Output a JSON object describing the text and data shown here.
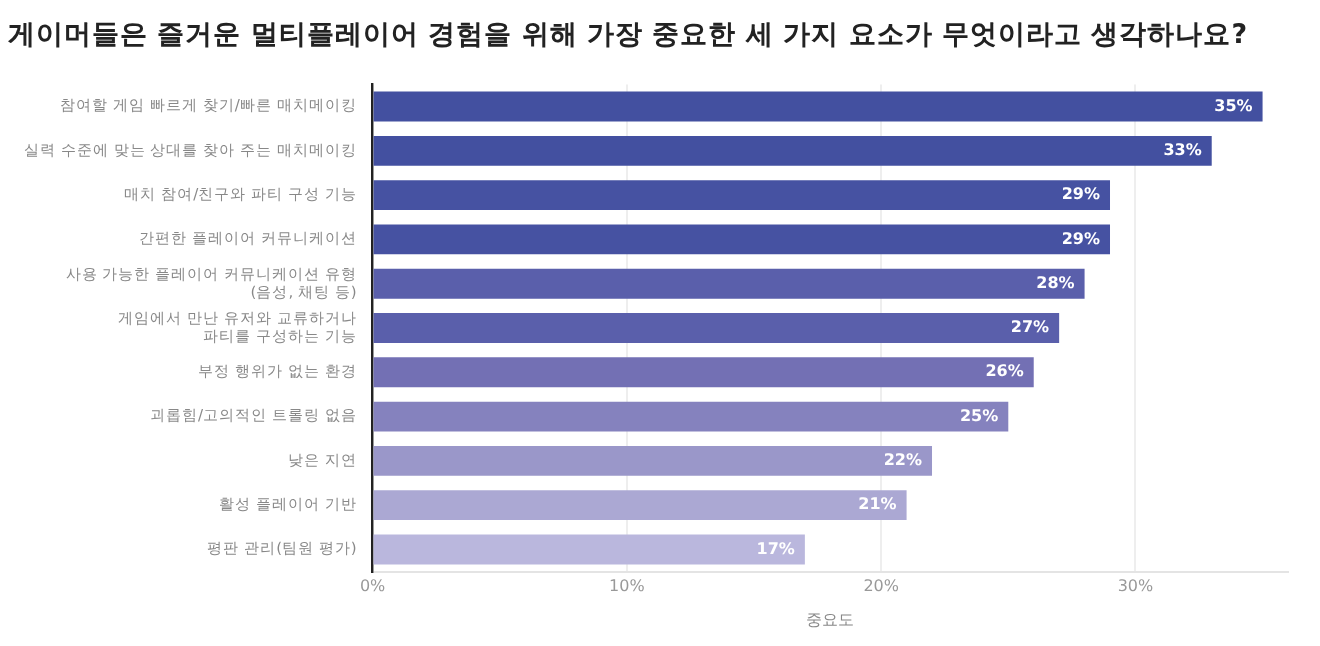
{
  "chart_data": {
    "type": "bar",
    "orientation": "horizontal",
    "title": "게이머들은 즐거운 멀티플레이어 경험을 위해 가장 중요한 세 가지 요소가 무엇이라고 생각하나요?",
    "xlabel": "중요도",
    "categories": [
      "참여할 게임 빠르게 찾기/빠른 매치메이킹",
      "실력 수준에 맞는 상대를 찾아 주는 매치메이킹",
      "매치 참여/친구와 파티 구성 기능",
      "간편한 플레이어 커뮤니케이션",
      "사용 가능한 플레이어 커뮤니케이션 유형\n(음성, 채팅 등)",
      "게임에서 만난 유저와 교류하거나\n파티를 구성하는 기능",
      "부정 행위가 없는 환경",
      "괴롭힘/고의적인 트롤링 없음",
      "낮은 지연",
      "활성 플레이어 기반",
      "평판 관리(팀원 평가)"
    ],
    "values": [
      35,
      33,
      29,
      29,
      28,
      27,
      26,
      25,
      22,
      21,
      17
    ],
    "colors": [
      "#4350a0",
      "#4350a0",
      "#4652a2",
      "#4652a2",
      "#5a5fab",
      "#5a5fab",
      "#7370b4",
      "#8582be",
      "#9a97c9",
      "#aba8d3",
      "#bab7dd"
    ],
    "value_labels": [
      "35%",
      "33%",
      "29%",
      "29%",
      "28%",
      "27%",
      "26%",
      "25%",
      "22%",
      "21%",
      "17%"
    ],
    "xlim": [
      0,
      36
    ],
    "xticks": [
      {
        "value": 0,
        "label": "0%"
      },
      {
        "value": 10,
        "label": "10%"
      },
      {
        "value": 20,
        "label": "20%"
      },
      {
        "value": 30,
        "label": "30%"
      }
    ],
    "grid": "x",
    "legend": false
  }
}
